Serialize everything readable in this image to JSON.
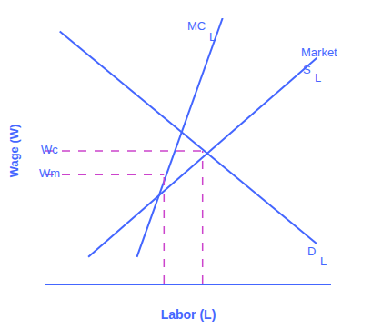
{
  "chart_data": {
    "type": "line",
    "xlabel": "Labor (L)",
    "ylabel": "Wage (W)",
    "color": "#4466ff",
    "xlim": [
      0,
      10
    ],
    "ylim": [
      0,
      10
    ],
    "xticks": [],
    "yticks": [],
    "tick_labels": false,
    "grid": false,
    "legend": false,
    "series": [
      {
        "x": [
          1.5,
          9.5
        ],
        "values": [
          1.0,
          8.5
        ],
        "color": "#4466ff",
        "line_style": "solid"
      },
      {
        "x": [
          3.2,
          6.2
        ],
        "values": [
          1.0,
          10.0
        ],
        "color": "#4466ff",
        "line_style": "solid"
      },
      {
        "x": [
          0.5,
          9.5
        ],
        "values": [
          9.5,
          1.5
        ],
        "color": "#4466ff",
        "line_style": "solid"
      },
      {
        "x": [
          0,
          5.5
        ],
        "values": [
          5.0,
          5.0
        ],
        "color": "#cc44cc",
        "line_style": "dashed"
      },
      {
        "x": [
          5.5,
          5.5
        ],
        "values": [
          0,
          5.0
        ],
        "color": "#cc44cc",
        "line_style": "dashed"
      },
      {
        "x": [
          0,
          4.15
        ],
        "values": [
          4.1,
          4.1
        ],
        "color": "#cc44cc",
        "line_style": "dashed"
      },
      {
        "x": [
          4.15,
          4.15
        ],
        "values": [
          0,
          4.1
        ],
        "color": "#cc44cc",
        "line_style": "dashed"
      }
    ],
    "annotations": [
      {
        "text": "Wc",
        "x": 0.15,
        "y": 5.05
      },
      {
        "text": "Wm",
        "x": 0.15,
        "y": 4.15
      },
      {
        "text": "MC",
        "x": 5.3,
        "y": 9.7
      },
      {
        "text": "L",
        "x": 5.85,
        "y": 9.3
      },
      {
        "text": "Market",
        "x": 9.6,
        "y": 8.7
      },
      {
        "text": "S",
        "x": 9.15,
        "y": 8.05
      },
      {
        "text": "L",
        "x": 9.55,
        "y": 7.75
      },
      {
        "text": "D",
        "x": 9.3,
        "y": 1.2
      },
      {
        "text": "L",
        "x": 9.72,
        "y": 0.85
      }
    ]
  }
}
